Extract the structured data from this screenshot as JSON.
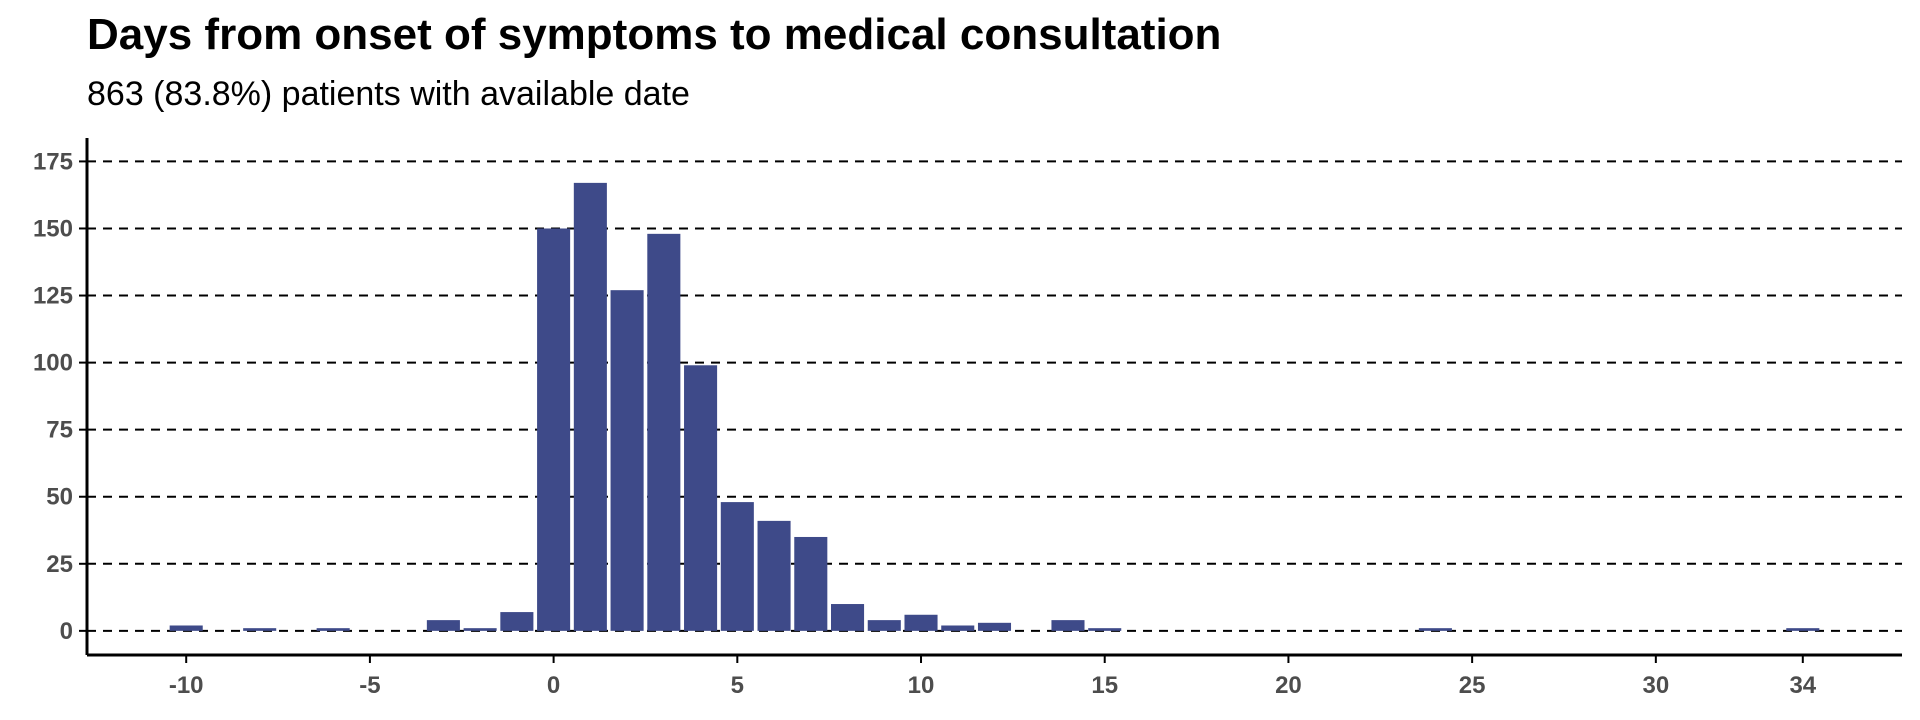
{
  "chart_data": {
    "type": "bar",
    "title": "Days from onset of symptoms to medical consultation",
    "subtitle": "863 (83.8%) patients with available date",
    "xlabel": "",
    "ylabel": "",
    "x": [
      -10,
      -8,
      -6,
      -3,
      -2,
      -1,
      0,
      1,
      2,
      3,
      4,
      5,
      6,
      7,
      8,
      9,
      10,
      11,
      12,
      14,
      15,
      24,
      34
    ],
    "values": [
      2,
      1,
      1,
      4,
      1,
      7,
      150,
      167,
      127,
      148,
      99,
      48,
      41,
      35,
      10,
      4,
      6,
      2,
      3,
      4,
      1,
      1,
      1
    ],
    "x_ticks": [
      -10,
      -5,
      0,
      5,
      10,
      15,
      20,
      25,
      30,
      34
    ],
    "y_ticks": [
      0,
      25,
      50,
      75,
      100,
      125,
      150,
      175
    ],
    "xlim": [
      -12.7,
      36.7
    ],
    "ylim": [
      -9,
      180
    ],
    "grid": "horizontal-dashed",
    "colors": {
      "bar": "#3e4a89",
      "grid": "#000000",
      "axis": "#000000",
      "tick_text": "#4d4d4d"
    }
  }
}
